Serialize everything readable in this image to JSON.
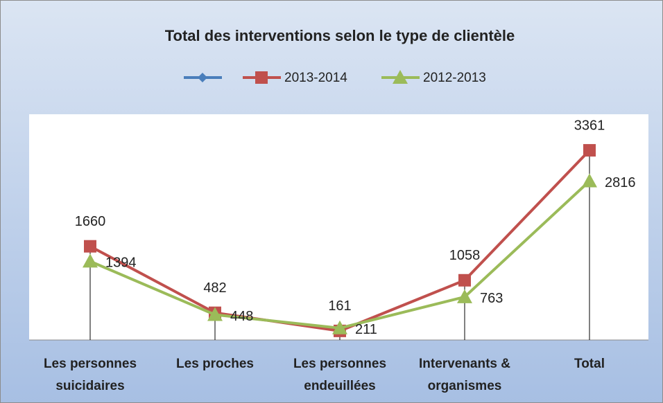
{
  "chart_data": {
    "type": "line",
    "title": "Total des interventions selon le type de clientèle",
    "categories": [
      "Les personnes suicidaires",
      "Les proches",
      "Les personnes endeuillées",
      "Intervenants & organismes",
      "Total"
    ],
    "series": [
      {
        "color": "#4a7ebb",
        "marker": "diamond",
        "values": [
          null,
          null,
          null,
          null,
          null
        ]
      },
      {
        "name": "2013-2014",
        "color": "#c0504d",
        "marker": "square",
        "values": [
          1660,
          482,
          161,
          1058,
          3361
        ]
      },
      {
        "name": "2012-2013",
        "color": "#9bbb59",
        "marker": "triangle",
        "values": [
          1394,
          448,
          211,
          763,
          2816
        ]
      }
    ],
    "ylim": [
      0,
      4000
    ],
    "legend": "top"
  }
}
